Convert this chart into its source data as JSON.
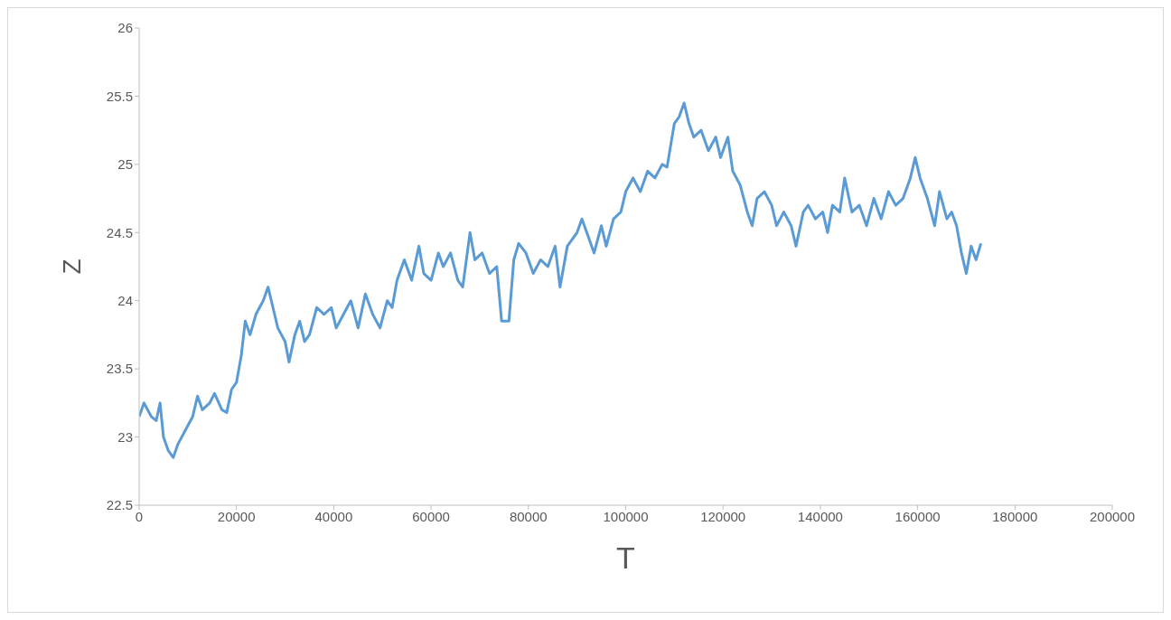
{
  "chart_data": {
    "type": "line",
    "xlabel": "T",
    "ylabel": "Z",
    "xlim": [
      0,
      200000
    ],
    "xticks": [
      0,
      20000,
      40000,
      60000,
      80000,
      100000,
      120000,
      140000,
      160000,
      180000,
      200000
    ],
    "ylim": [
      22.5,
      26
    ],
    "yticks": [
      22.5,
      23,
      23.5,
      24,
      24.5,
      25,
      25.5,
      26
    ],
    "marker": "none",
    "line_style": "solid",
    "series": [
      {
        "color": "#5b9bd5",
        "x": [
          0,
          1000,
          2500,
          3500,
          4300,
          5000,
          6000,
          7000,
          8000,
          9500,
          11000,
          12000,
          13000,
          14500,
          15500,
          17000,
          18000,
          19000,
          20000,
          21000,
          21800,
          22800,
          24000,
          25500,
          26500,
          27500,
          28500,
          30000,
          30800,
          32000,
          33000,
          34000,
          35000,
          36500,
          38000,
          39500,
          40500,
          42000,
          43500,
          45000,
          46500,
          48000,
          49500,
          51000,
          52000,
          53000,
          54500,
          56000,
          57500,
          58500,
          60000,
          61500,
          62500,
          64000,
          65500,
          66500,
          68000,
          69000,
          70500,
          72000,
          73500,
          74500,
          76000,
          77000,
          78000,
          79500,
          81000,
          82500,
          84000,
          85500,
          86500,
          88000,
          90000,
          91000,
          92500,
          93500,
          95000,
          96000,
          97500,
          99000,
          100000,
          101500,
          103000,
          104500,
          106000,
          107500,
          108500,
          110000,
          111000,
          112000,
          113000,
          114000,
          115500,
          117000,
          118500,
          119500,
          121000,
          122000,
          123500,
          125000,
          126000,
          127000,
          128500,
          130000,
          131000,
          132500,
          134000,
          135000,
          136500,
          137500,
          139000,
          140500,
          141500,
          142500,
          144000,
          145000,
          146500,
          148000,
          149500,
          151000,
          152500,
          154000,
          155500,
          157000,
          158500,
          159500,
          160500,
          162000,
          163500,
          164500,
          166000,
          167000,
          168000,
          169000,
          170000,
          171000,
          172000,
          173000
        ],
        "values": [
          23.15,
          23.25,
          23.15,
          23.12,
          23.25,
          23.0,
          22.9,
          22.85,
          22.95,
          23.05,
          23.15,
          23.3,
          23.2,
          23.25,
          23.32,
          23.2,
          23.18,
          23.35,
          23.4,
          23.6,
          23.85,
          23.75,
          23.9,
          24.0,
          24.1,
          23.95,
          23.8,
          23.7,
          23.55,
          23.75,
          23.85,
          23.7,
          23.75,
          23.95,
          23.9,
          23.95,
          23.8,
          23.9,
          24.0,
          23.8,
          24.05,
          23.9,
          23.8,
          24.0,
          23.95,
          24.15,
          24.3,
          24.15,
          24.4,
          24.2,
          24.15,
          24.35,
          24.25,
          24.35,
          24.15,
          24.1,
          24.5,
          24.3,
          24.35,
          24.2,
          24.25,
          23.85,
          23.85,
          24.3,
          24.42,
          24.35,
          24.2,
          24.3,
          24.25,
          24.4,
          24.1,
          24.4,
          24.5,
          24.6,
          24.45,
          24.35,
          24.55,
          24.4,
          24.6,
          24.65,
          24.8,
          24.9,
          24.8,
          24.95,
          24.9,
          25.0,
          24.98,
          25.3,
          25.35,
          25.45,
          25.3,
          25.2,
          25.25,
          25.1,
          25.2,
          25.05,
          25.2,
          24.95,
          24.85,
          24.65,
          24.55,
          24.75,
          24.8,
          24.7,
          24.55,
          24.65,
          24.55,
          24.4,
          24.65,
          24.7,
          24.6,
          24.65,
          24.5,
          24.7,
          24.65,
          24.9,
          24.65,
          24.7,
          24.55,
          24.75,
          24.6,
          24.8,
          24.7,
          24.75,
          24.9,
          25.05,
          24.9,
          24.75,
          24.55,
          24.8,
          24.6,
          24.65,
          24.55,
          24.35,
          24.2,
          24.4,
          24.3,
          24.42
        ]
      }
    ]
  }
}
